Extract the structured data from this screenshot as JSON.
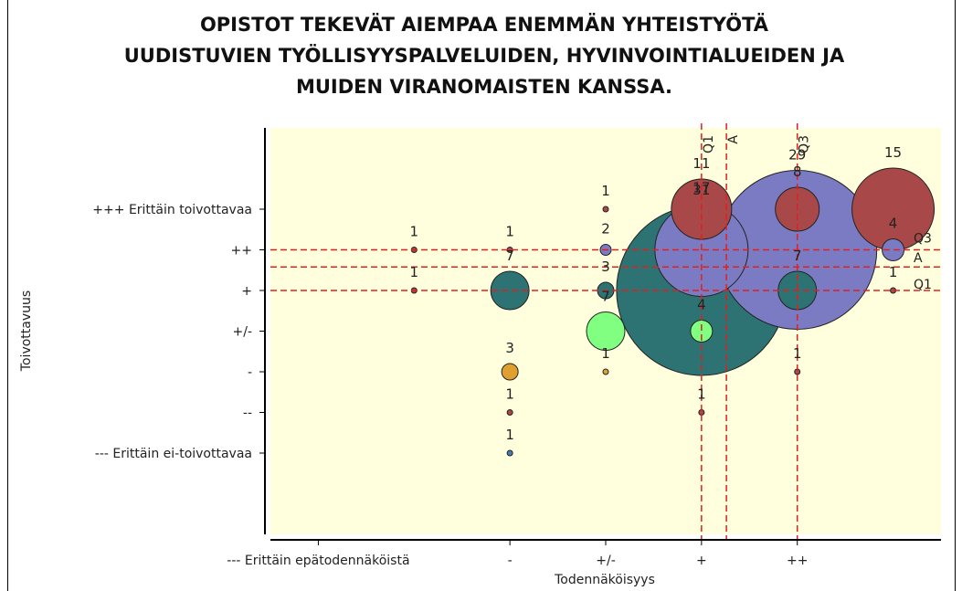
{
  "chart_data": {
    "type": "bubble",
    "title": [
      "OPISTOT TEKEVÄT AIEMPAA ENEMMÄN YHTEISTYÖTÄ",
      "UUDISTUVIEN TYÖLLISYYSPALVELUIDEN, HYVINVOINTIALUEIDEN JA",
      "MUIDEN VIRANOMAISTEN KANSSA."
    ],
    "x_label": "Todennäköisyys",
    "y_label": "Toivottavuus",
    "xlim": [
      0.5,
      7.5
    ],
    "ylim": [
      -1,
      9
    ],
    "xticks": [
      {
        "value": 1,
        "label": "--- Erittäin epätodennäköistä"
      },
      {
        "value": 3,
        "label": "-"
      },
      {
        "value": 4,
        "label": "+/-"
      },
      {
        "value": 5,
        "label": "+"
      },
      {
        "value": 6,
        "label": "++"
      }
    ],
    "yticks": [
      {
        "value": 1,
        "label": "--- Erittäin ei-toivottavaa"
      },
      {
        "value": 2,
        "label": "--"
      },
      {
        "value": 3,
        "label": "-"
      },
      {
        "value": 4,
        "label": "+/-"
      },
      {
        "value": 5,
        "label": "+"
      },
      {
        "value": 6,
        "label": "++"
      },
      {
        "value": 7,
        "label": "+++ Erittäin toivottavaa"
      }
    ],
    "series": [
      {
        "color": "#2d7373",
        "x": [
          3,
          4,
          5,
          6
        ],
        "y": [
          5,
          5,
          5,
          5
        ],
        "sizes": [
          7,
          3,
          31,
          7
        ]
      },
      {
        "color": "#7b7bc4",
        "x": [
          4,
          5,
          6,
          7
        ],
        "y": [
          6,
          6,
          6,
          6
        ],
        "sizes": [
          2,
          17,
          29,
          4
        ]
      },
      {
        "color": "#a84848",
        "x": [
          2,
          2,
          3,
          4,
          5,
          6,
          7,
          7,
          6,
          3,
          5
        ],
        "y": [
          6,
          5,
          6,
          7,
          7,
          7,
          7,
          5,
          3,
          2,
          2
        ],
        "sizes": [
          1,
          1,
          1,
          1,
          11,
          8,
          15,
          1,
          1,
          1,
          1
        ]
      },
      {
        "color": "#80ff80",
        "x": [
          4,
          5
        ],
        "y": [
          4,
          4
        ],
        "sizes": [
          7,
          4
        ]
      },
      {
        "color": "#e0a030",
        "x": [
          3,
          4
        ],
        "y": [
          3,
          3
        ],
        "sizes": [
          3,
          1
        ]
      },
      {
        "color": "#4a7ab5",
        "x": [
          3
        ],
        "y": [
          1
        ],
        "sizes": [
          1
        ]
      }
    ],
    "reference_lines": {
      "x": [
        {
          "label": "Q1",
          "value": 5
        },
        {
          "label": "A",
          "value": 5.26
        },
        {
          "label": "Q3",
          "value": 6
        }
      ],
      "y": [
        {
          "label": "Q3",
          "value": 6
        },
        {
          "label": "A",
          "value": 5.58
        },
        {
          "label": "Q1",
          "value": 5
        }
      ]
    }
  }
}
